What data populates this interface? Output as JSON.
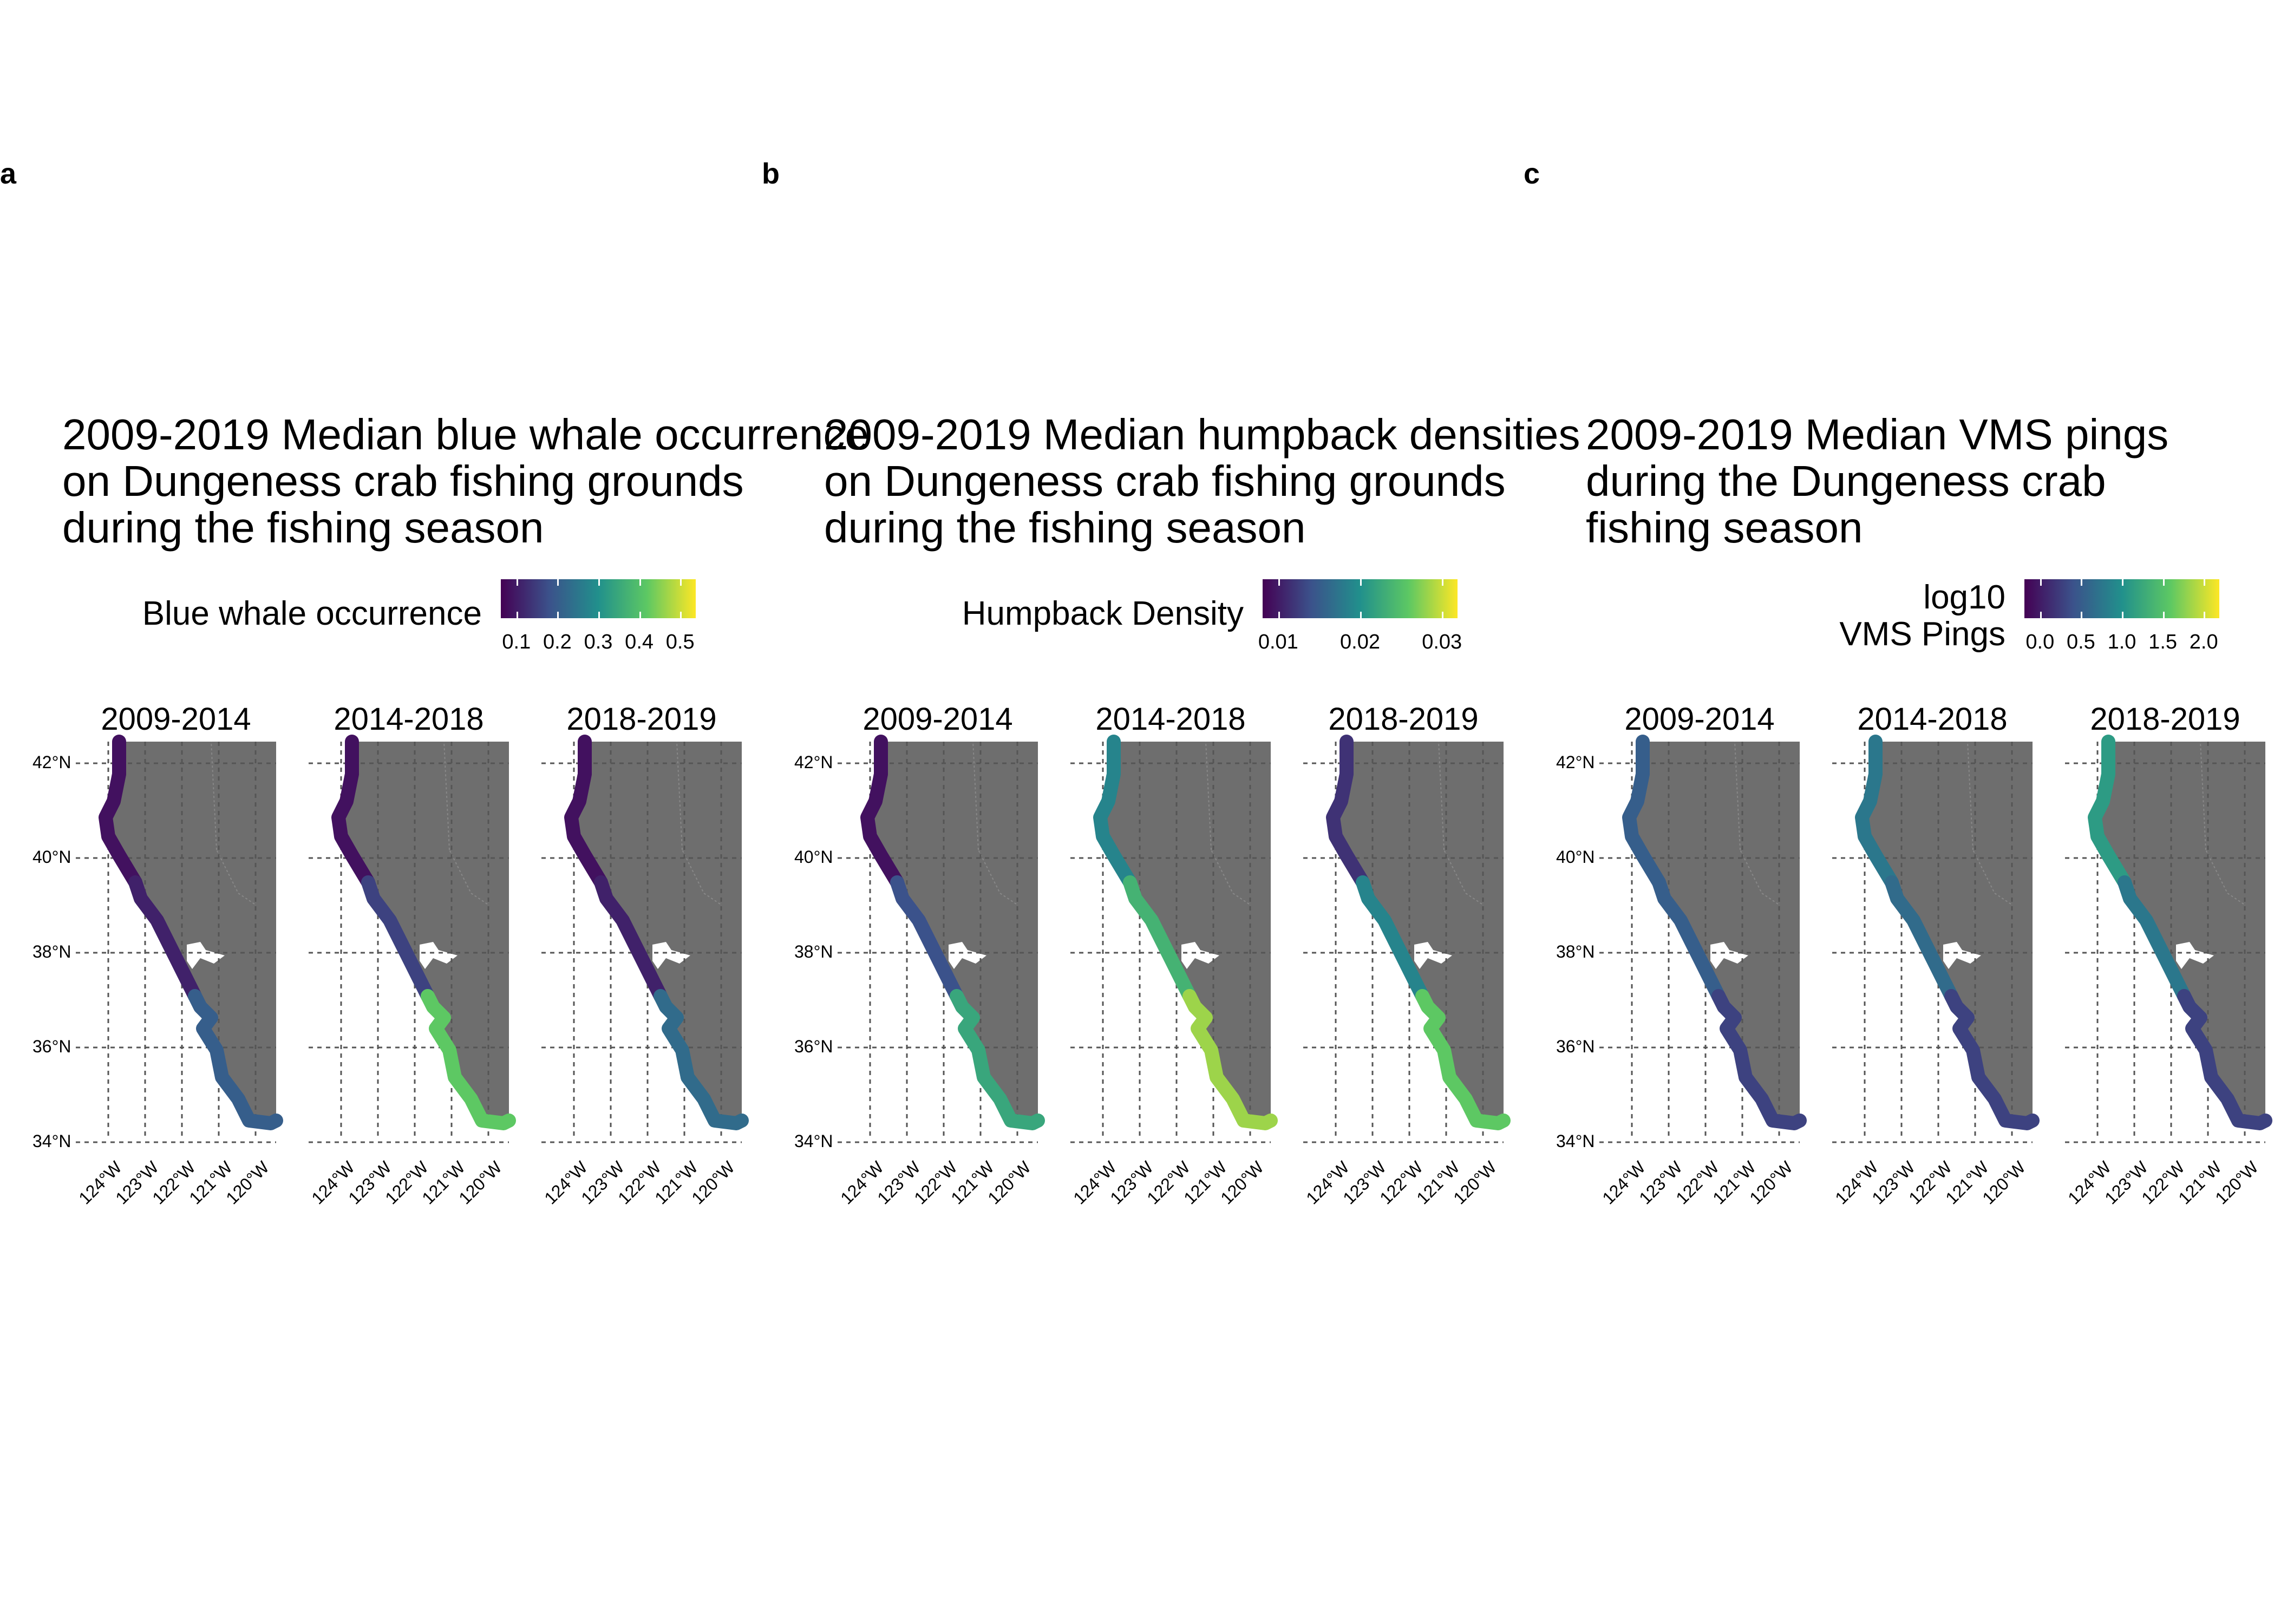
{
  "panels": [
    {
      "label": "a",
      "title": "2009-2019 Median blue whale occurrence\non Dungeness crab fishing grounds\nduring the fishing season",
      "legend_title": "Blue whale occurrence",
      "legend_ticks": [
        "0.1",
        "0.2",
        "0.3",
        "0.4",
        "0.5"
      ],
      "facets": [
        {
          "title": "2009-2014",
          "north": 0.05,
          "center": 0.1,
          "south": 0.3
        },
        {
          "title": "2014-2018",
          "north": 0.05,
          "center": 0.2,
          "south": 0.75
        },
        {
          "title": "2018-2019",
          "north": 0.05,
          "center": 0.1,
          "south": 0.35
        }
      ]
    },
    {
      "label": "b",
      "title": "2009-2019 Median humpback densities\non Dungeness crab fishing grounds\nduring the fishing season",
      "legend_title": "Humpback Density",
      "legend_ticks": [
        "0.01",
        "0.02",
        "0.03"
      ],
      "facets": [
        {
          "title": "2009-2014",
          "north": 0.05,
          "center": 0.25,
          "south": 0.6
        },
        {
          "title": "2014-2018",
          "north": 0.45,
          "center": 0.65,
          "south": 0.85
        },
        {
          "title": "2018-2019",
          "north": 0.15,
          "center": 0.45,
          "south": 0.75
        }
      ]
    },
    {
      "label": "c",
      "title": "2009-2019 Median VMS pings\nduring the Dungeness crab\nfishing season",
      "legend_title": "log10\nVMS Pings",
      "legend_ticks": [
        "0.0",
        "0.5",
        "1.0",
        "1.5",
        "2.0"
      ],
      "facets": [
        {
          "title": "2009-2014",
          "north": 0.3,
          "center": 0.3,
          "south": 0.2
        },
        {
          "title": "2014-2018",
          "north": 0.4,
          "center": 0.35,
          "south": 0.2
        },
        {
          "title": "2018-2019",
          "north": 0.55,
          "center": 0.4,
          "south": 0.2
        }
      ]
    }
  ],
  "axes": {
    "lat_labels": [
      "42°N",
      "40°N",
      "38°N",
      "36°N",
      "34°N"
    ],
    "lon_labels": [
      "124°W",
      "123°W",
      "122°W",
      "121°W",
      "120°W"
    ]
  },
  "colors": {
    "land": "#6e6e6e",
    "colormap": [
      "#440154",
      "#3b528b",
      "#21908c",
      "#5dc863",
      "#fde725"
    ]
  }
}
